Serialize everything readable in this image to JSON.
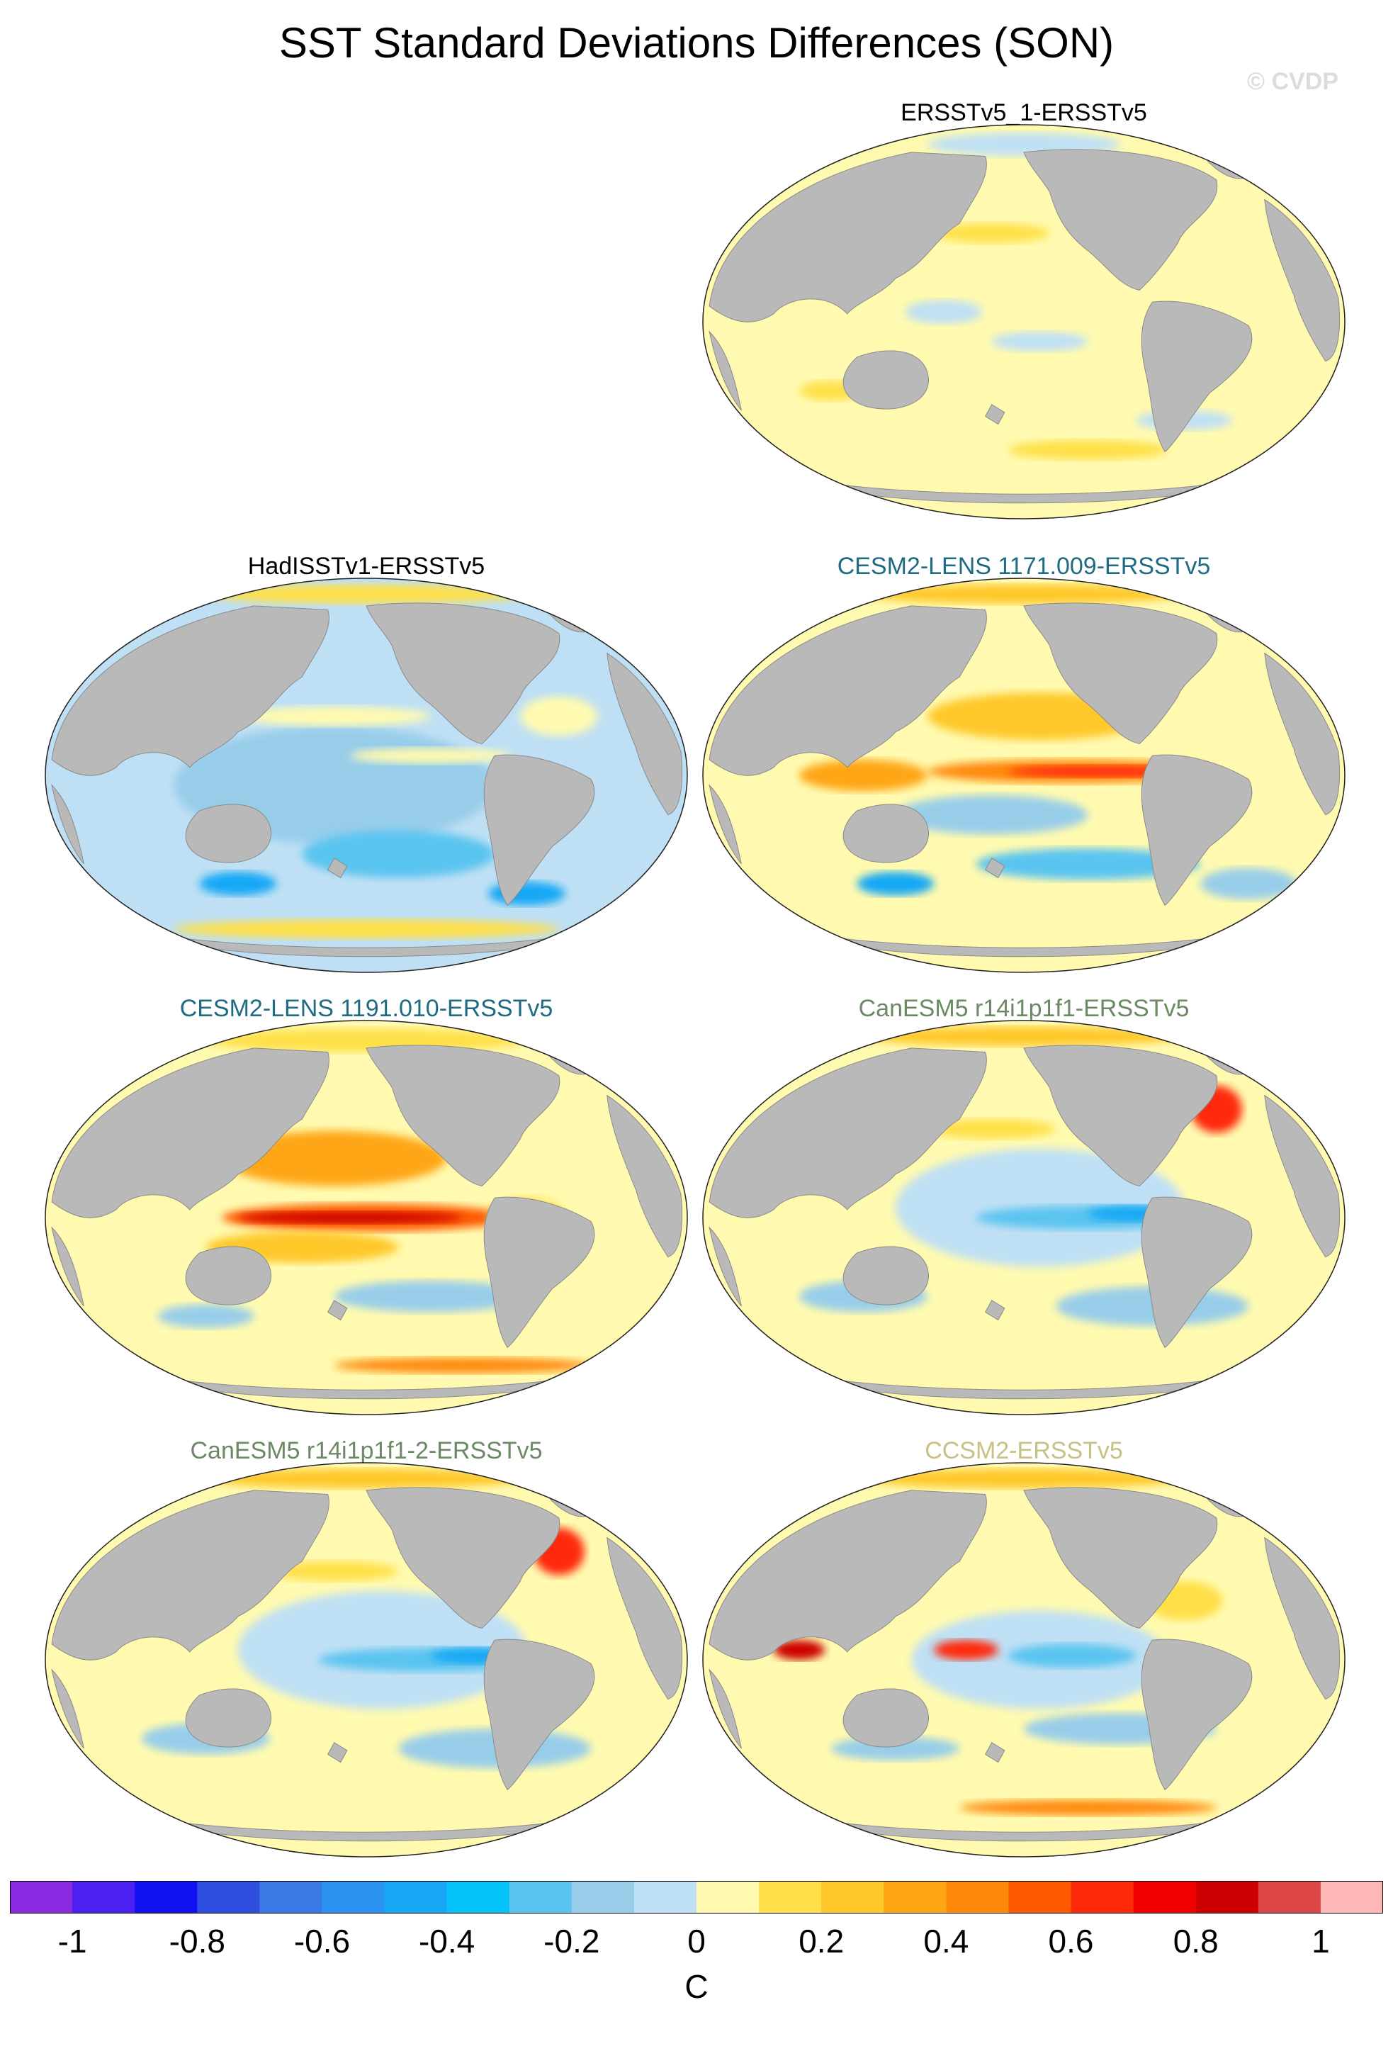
{
  "title": "SST Standard Deviations Differences (SON)",
  "watermark": "© CVDP",
  "panels": [
    {
      "id": "p1",
      "title": "ERSSTv5_1-ERSSTv5",
      "title_color": "#000000",
      "pattern": "nearzero"
    },
    {
      "id": "p2",
      "title": "HadISSTv1-ERSSTv5",
      "title_color": "#000000",
      "pattern": "mostly-negative"
    },
    {
      "id": "p3",
      "title": "CESM2-LENS 1171.009-ERSSTv5",
      "title_color": "#1f6b82",
      "pattern": "enso-positive"
    },
    {
      "id": "p4",
      "title": "CESM2-LENS 1191.010-ERSSTv5",
      "title_color": "#1f6b82",
      "pattern": "enso-strong-positive"
    },
    {
      "id": "p5",
      "title": "CanESM5 r14i1p1f1-ERSSTv5",
      "title_color": "#6b8a64",
      "pattern": "tropical-negative"
    },
    {
      "id": "p6",
      "title": "CanESM5 r14i1p1f1-2-ERSSTv5",
      "title_color": "#6b8a64",
      "pattern": "tropical-negative"
    },
    {
      "id": "p7",
      "title": "CCSM2-ERSSTv5",
      "title_color": "#c8c084",
      "pattern": "mixed"
    }
  ],
  "colorbar": {
    "colors": [
      "#8a2be2",
      "#4b20f0",
      "#1010f0",
      "#2e4fe0",
      "#3a78e6",
      "#2b92f2",
      "#16a8f5",
      "#04c3f8",
      "#5ac4f0",
      "#98cdea",
      "#bfe0f4",
      "#fffab0",
      "#ffe04a",
      "#ffc82a",
      "#ffa615",
      "#ff8a0a",
      "#ff5a00",
      "#ff2a0a",
      "#f00000",
      "#cc0000",
      "#dd4646",
      "#ffb6b6"
    ],
    "labels": [
      "-1",
      "-0.8",
      "-0.6",
      "-0.4",
      "-0.2",
      "0",
      "0.2",
      "0.4",
      "0.6",
      "0.8",
      "1"
    ],
    "units": "C",
    "range": [
      -1.1,
      1.1
    ]
  },
  "colors": {
    "land": "#b9b9b9",
    "ice_edge": "#ffffff"
  }
}
